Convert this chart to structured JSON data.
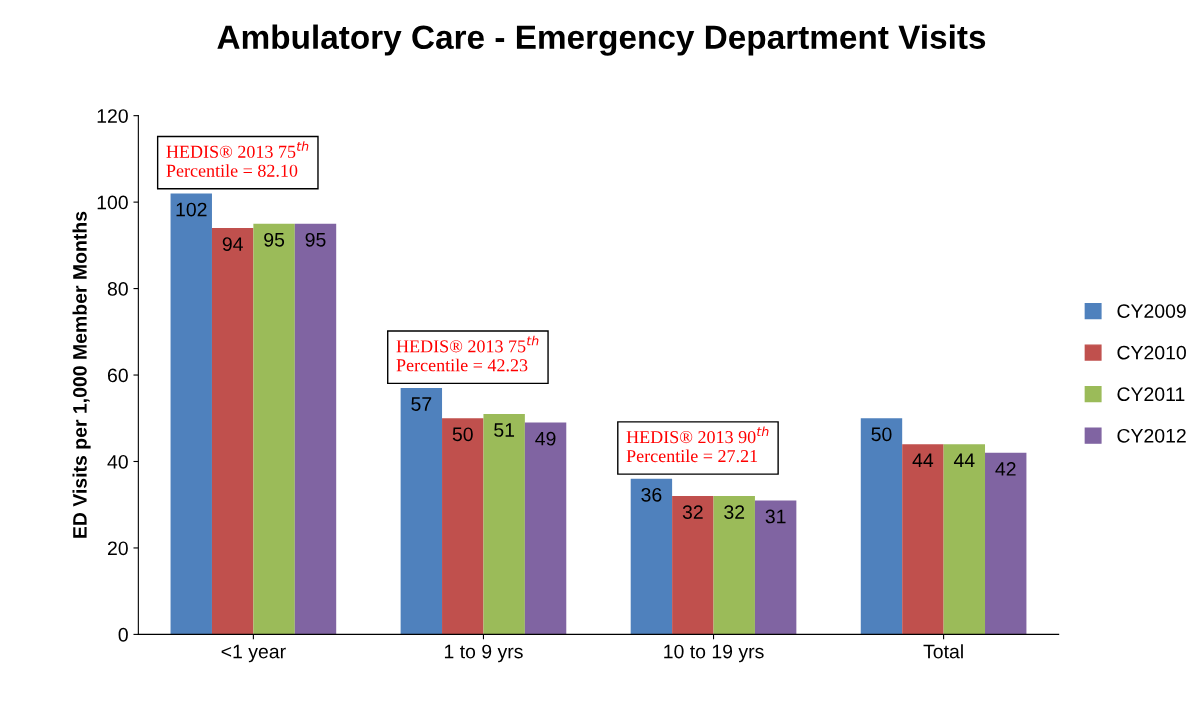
{
  "chart_data": {
    "type": "bar",
    "title": "Ambulatory Care - Emergency Department Visits",
    "ylabel": "ED Visits per 1,000 Member Months",
    "categories": [
      "<1 year",
      "1 to 9 yrs",
      "10 to 19 yrs",
      "Total"
    ],
    "series": [
      {
        "name": "CY2009",
        "color": "#4f81bd",
        "values": [
          102,
          57,
          36,
          50
        ]
      },
      {
        "name": "CY2010",
        "color": "#c0504d",
        "values": [
          94,
          50,
          32,
          44
        ]
      },
      {
        "name": "CY2011",
        "color": "#9bbb59",
        "values": [
          95,
          51,
          32,
          44
        ]
      },
      {
        "name": "CY2012",
        "color": "#8064a2",
        "values": [
          95,
          49,
          31,
          42
        ]
      }
    ],
    "ylim": [
      0,
      120
    ],
    "yticks": [
      0,
      20,
      40,
      60,
      80,
      100,
      120
    ],
    "grid": false,
    "legend": "right",
    "data_labels": true,
    "annotations": [
      "HEDIS® 2013 75$^{th}$\nPercentile = 82.10",
      "HEDIS® 2013 75$^{th}$\nPercentile = 42.23",
      "HEDIS® 2013 90$^{th}$\nPercentile = 27.21"
    ]
  }
}
